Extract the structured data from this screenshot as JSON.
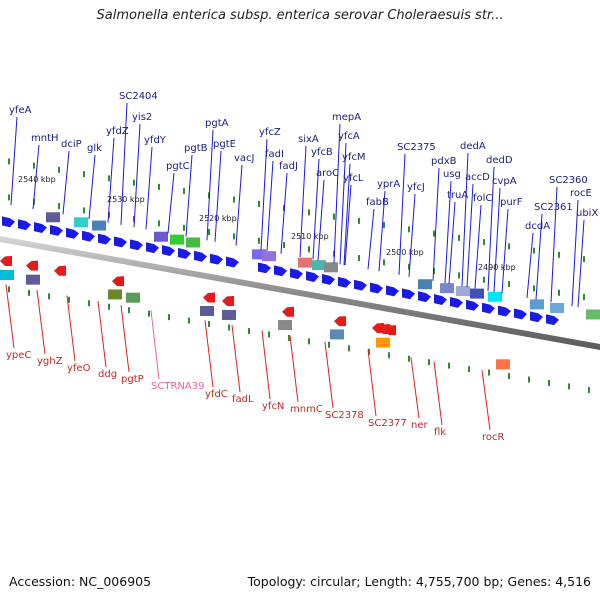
{
  "title": "Salmonella enterica subsp. enterica serovar Choleraesuis str...",
  "footer": {
    "accession": "Accession: NC_006905",
    "summary": "Topology: circular; Length: 4,755,700 bp; Genes: 4,516"
  },
  "colors": {
    "top_label": "#1a237e",
    "top_line": "#1a1ae0",
    "bottom_label": "#c62828",
    "bottom_line": "#e02020",
    "trna_label": "#f06292",
    "backbone": "#8a8a8a",
    "tick": "#2e8b2e",
    "arrow_forward": "#1a1ae6",
    "arrow_reverse": "#e61a1a"
  },
  "ticks": [
    "2540 kbp",
    "2530 kbp",
    "2520 kbp",
    "2510 kbp",
    "2500 kbp",
    "2490 kbp"
  ],
  "top_genes": [
    "yfeA",
    "mntH",
    "dciP",
    "glk",
    "yfdZ",
    "SC2404",
    "yis2",
    "yfdY",
    "pgtC",
    "pgtB",
    "pgtA",
    "pgtE",
    "vacJ",
    "yfcZ",
    "fadI",
    "fadJ",
    "sixA",
    "yfcB",
    "aroC",
    "mepA",
    "yfcA",
    "yfcM",
    "yfcL",
    "fabB",
    "yprA",
    "yfcJ",
    "SC2375",
    "pdxB",
    "usg",
    "truA",
    "dedA",
    "accD",
    "folC",
    "dedD",
    "cvpA",
    "purF",
    "dcdA",
    "SC2361",
    "SC2360",
    "rocE",
    "ubiX"
  ],
  "bottom_genes": [
    "ypeC",
    "yghZ",
    "yfeO",
    "ddg",
    "pgtP",
    "SCTRNA39",
    "yfdC",
    "fadL",
    "yfcN",
    "mnmC",
    "SC2378",
    "SC2377",
    "ner",
    "flk",
    "rocR"
  ]
}
